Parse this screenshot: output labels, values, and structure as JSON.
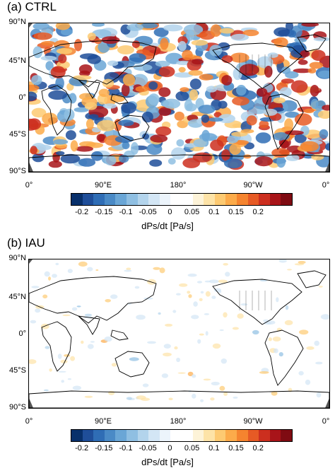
{
  "panels": [
    {
      "id": "ctrl",
      "title": "(a) CTRL"
    },
    {
      "id": "iau",
      "title": "(b) IAU"
    }
  ],
  "latitude_labels": [
    "90°N",
    "45°N",
    "0°",
    "45°S",
    "90°S"
  ],
  "longitude_labels": [
    "0°",
    "90°E",
    "180°",
    "90°W",
    "0°"
  ],
  "colorbar": {
    "ticks": [
      "-0.2",
      "-0.15",
      "-0.1",
      "-0.05",
      "0",
      "0.05",
      "0.1",
      "0.15",
      "0.2"
    ],
    "label": "dPs/dt [Pa/s]",
    "colors": [
      "#08306b",
      "#1f4e99",
      "#2f6db5",
      "#4a8ac6",
      "#6aa6d6",
      "#8fbfe2",
      "#b3d4ec",
      "#d3e6f5",
      "#ecf4fb",
      "#ffffff",
      "#ffffff",
      "#fdf3d8",
      "#fde3a7",
      "#fdca72",
      "#fcab4a",
      "#f5842f",
      "#e65a25",
      "#cc2f1f",
      "#a81419",
      "#7f0b12"
    ]
  },
  "colors": {
    "land_outline": "#000000",
    "frame": "#000000",
    "gap_gray": "#555555"
  }
}
